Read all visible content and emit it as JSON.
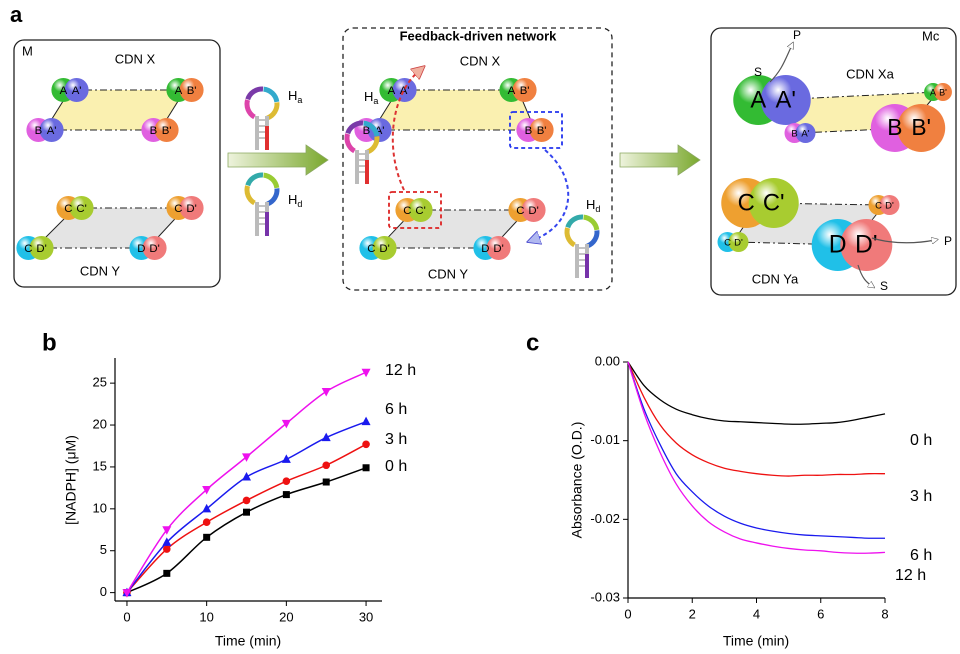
{
  "diagram": {
    "label": "a",
    "hairpin_a": {
      "main": "H",
      "sub": "a"
    },
    "hairpin_d": {
      "main": "H",
      "sub": "d"
    },
    "panels": [
      {
        "label": "M",
        "network_x": "CDN X",
        "network_y": "CDN Y",
        "spheres": [
          [
            "A",
            "A'"
          ],
          [
            "A",
            "B'"
          ],
          [
            "B",
            "A'"
          ],
          [
            "B",
            "B'"
          ],
          [
            "C",
            "C'"
          ],
          [
            "C",
            "D'"
          ],
          [
            "C",
            "D'"
          ],
          [
            "D",
            "D'"
          ]
        ]
      },
      {
        "title": "Feedback-driven network",
        "network_x": "CDN X",
        "network_y": "CDN Y",
        "spheres": [
          [
            "A",
            "A'"
          ],
          [
            "A",
            "B'"
          ],
          [
            "B",
            "A'"
          ],
          [
            "B",
            "B'"
          ],
          [
            "C",
            "C'"
          ],
          [
            "C",
            "D'"
          ],
          [
            "C",
            "D'"
          ],
          [
            "D",
            "D'"
          ]
        ]
      },
      {
        "label": "Mc",
        "network_x": "CDN Xa",
        "network_y": "CDN Ya",
        "substrate": "S",
        "product": "P",
        "spheres": [
          [
            "A",
            "A'"
          ],
          [
            "A",
            "B'"
          ],
          [
            "B",
            "A'"
          ],
          [
            "B",
            "B'"
          ],
          [
            "C",
            "C'"
          ],
          [
            "C",
            "D'"
          ],
          [
            "C",
            "D'"
          ],
          [
            "D",
            "D'"
          ]
        ]
      }
    ]
  },
  "chart_data": [
    {
      "type": "scatter",
      "panel_label": "b",
      "x_label": "Time (min)",
      "y_label": "[NADPH] (μM)",
      "x": [
        0,
        5,
        10,
        15,
        20,
        25,
        30
      ],
      "xlim": [
        -1.5,
        32
      ],
      "ylim": [
        -1,
        28
      ],
      "xticks": [
        0,
        10,
        20,
        30
      ],
      "yticks": [
        0,
        5,
        10,
        15,
        20,
        25
      ],
      "series": [
        {
          "name": "0 h",
          "color": "#000000",
          "marker": "square",
          "values": [
            0,
            2.3,
            6.6,
            9.6,
            11.7,
            13.2,
            14.9
          ]
        },
        {
          "name": "3 h",
          "color": "#ee1111",
          "marker": "circle",
          "values": [
            0,
            5.2,
            8.4,
            11.0,
            13.3,
            15.2,
            17.7
          ]
        },
        {
          "name": "6 h",
          "color": "#1a1aee",
          "marker": "triangle-up",
          "values": [
            0,
            6.0,
            10.0,
            13.8,
            15.9,
            18.5,
            20.4
          ]
        },
        {
          "name": "12 h",
          "color": "#ee11ee",
          "marker": "triangle-down",
          "values": [
            0,
            7.5,
            12.3,
            16.2,
            20.2,
            24.0,
            26.3
          ]
        }
      ]
    },
    {
      "type": "line",
      "panel_label": "c",
      "x_label": "Time (min)",
      "y_label": "Absorbance (O.D.)",
      "x": [
        0,
        0.5,
        1,
        1.5,
        2,
        2.5,
        3,
        3.5,
        4,
        4.5,
        5,
        5.5,
        6,
        6.5,
        7,
        7.5,
        8
      ],
      "xlim": [
        0,
        8
      ],
      "ylim": [
        -0.03,
        0
      ],
      "xticks": [
        0,
        2,
        4,
        6,
        8
      ],
      "yticks": [
        {
          "value": 0,
          "label": "0.00"
        },
        -0.01,
        -0.02,
        -0.03
      ],
      "series": [
        {
          "name": "0 h",
          "color": "#000000",
          "values": [
            0,
            -0.003,
            -0.0048,
            -0.006,
            -0.0067,
            -0.0072,
            -0.0075,
            -0.0076,
            -0.0077,
            -0.0078,
            -0.0079,
            -0.0079,
            -0.0078,
            -0.0077,
            -0.0074,
            -0.007,
            -0.0066
          ]
        },
        {
          "name": "3 h",
          "color": "#ee1111",
          "values": [
            0,
            -0.0045,
            -0.008,
            -0.0103,
            -0.0118,
            -0.0128,
            -0.0135,
            -0.0139,
            -0.0142,
            -0.0144,
            -0.0145,
            -0.0144,
            -0.0144,
            -0.0143,
            -0.0143,
            -0.0142,
            -0.0142
          ]
        },
        {
          "name": "6 h",
          "color": "#1a1aee",
          "values": [
            0,
            -0.006,
            -0.0105,
            -0.0142,
            -0.0165,
            -0.0183,
            -0.0196,
            -0.0205,
            -0.0211,
            -0.0215,
            -0.0218,
            -0.022,
            -0.0221,
            -0.0222,
            -0.0223,
            -0.0224,
            -0.0224
          ]
        },
        {
          "name": "12 h",
          "color": "#ee11ee",
          "values": [
            0,
            -0.0065,
            -0.0115,
            -0.0155,
            -0.0183,
            -0.0203,
            -0.0216,
            -0.0225,
            -0.023,
            -0.0234,
            -0.0237,
            -0.0239,
            -0.024,
            -0.0242,
            -0.0243,
            -0.0243,
            -0.0242
          ]
        }
      ]
    }
  ]
}
